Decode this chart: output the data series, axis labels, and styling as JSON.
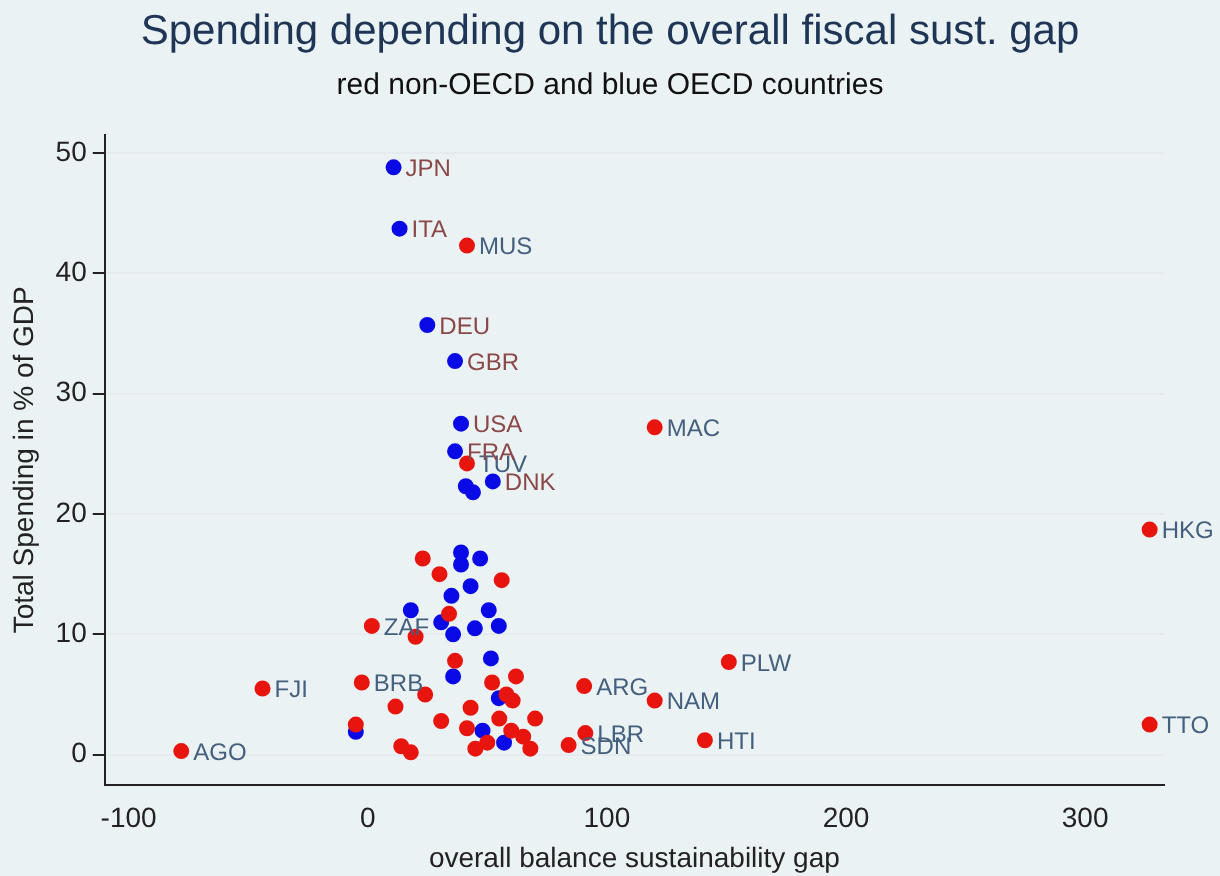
{
  "chart_data": {
    "type": "scatter",
    "title": "Spending depending on the overall fiscal sust. gap",
    "subtitle": "red non-OECD and blue OECD countries",
    "xlabel": "overall balance sustainability gap",
    "ylabel": "Total Spending in % of GDP",
    "xlim": [
      -110,
      333
    ],
    "ylim": [
      -2.5,
      51.5
    ],
    "xticks": [
      -100,
      0,
      100,
      200,
      300
    ],
    "yticks": [
      0,
      10,
      20,
      30,
      40,
      50
    ],
    "grid": "y",
    "legend": false,
    "marker": "circle",
    "series": [
      {
        "color": "#e8150f",
        "x": [
          41.5,
          41.5,
          120,
          327,
          327,
          151,
          90.5,
          120,
          141,
          91,
          84,
          -78,
          -44,
          -2.5,
          1.7,
          23,
          30,
          20,
          24,
          11.6,
          14,
          18,
          36.5,
          34,
          60.6,
          56,
          41.5,
          30.7,
          43,
          -5,
          50,
          55,
          60,
          65,
          70,
          58,
          45,
          52,
          68,
          62
        ],
        "values": [
          42.3,
          24.2,
          27.2,
          18.7,
          2.5,
          7.7,
          5.7,
          4.5,
          1.2,
          1.8,
          0.8,
          0.3,
          5.5,
          6,
          10.7,
          16.3,
          15,
          9.8,
          5,
          4,
          0.7,
          0.2,
          7.8,
          11.7,
          4.5,
          14.5,
          2.2,
          2.8,
          3.9,
          2.5,
          1,
          3,
          2,
          1.5,
          3,
          5,
          0.5,
          6,
          0.5,
          6.5
        ],
        "value_labels": [
          "MUS",
          "TUV",
          "MAC",
          "HKG",
          "TTO",
          "PLW",
          "ARG",
          "NAM",
          "HTI",
          "LBR",
          "SDN",
          "AGO",
          "FJI",
          "BRB",
          "ZAF",
          null,
          null,
          null,
          null,
          null,
          null,
          null,
          null,
          null,
          null,
          null,
          null,
          null,
          null,
          null,
          null,
          null,
          null,
          null,
          null,
          null,
          null,
          null,
          null,
          null
        ]
      },
      {
        "color": "#0a0ae6",
        "x": [
          10.8,
          13.3,
          24.9,
          36.5,
          39,
          36.5,
          52.3,
          39,
          47,
          39,
          43,
          35,
          18,
          30.7,
          50.6,
          44.8,
          35.7,
          54.8,
          51.5,
          35.7,
          54.8,
          -5,
          48,
          57,
          41,
          44
        ],
        "values": [
          48.8,
          43.7,
          35.7,
          32.7,
          27.5,
          25.2,
          22.7,
          16.8,
          16.3,
          15.8,
          14,
          13.2,
          12,
          11,
          12,
          10.5,
          10,
          10.7,
          8,
          6.5,
          4.7,
          1.9,
          2,
          1,
          22.3,
          21.8
        ],
        "value_labels": [
          "JPN",
          "ITA",
          "DEU",
          "GBR",
          "USA",
          "FRA",
          "DNK",
          null,
          null,
          null,
          null,
          null,
          null,
          null,
          null,
          null,
          null,
          null,
          null,
          null,
          null,
          null,
          null,
          null,
          null,
          null
        ]
      }
    ]
  }
}
